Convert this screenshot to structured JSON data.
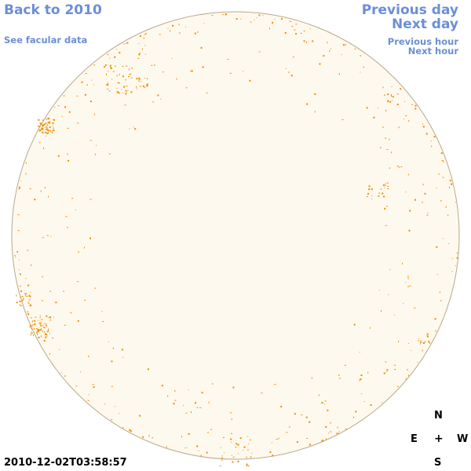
{
  "nav": {
    "back": "Back to 2010",
    "facular": "See facular data",
    "prev_day": "Previous day",
    "next_day": "Next day",
    "prev_hour": "Previous hour",
    "next_hour": "Next hour"
  },
  "compass": {
    "north": "N",
    "east": "E",
    "center": "+",
    "west": "W",
    "south": "S"
  },
  "timestamp": "2010-12-02T03:58:57",
  "colors": {
    "link": "#6b8fd6",
    "disk_fill": "#fef9ee",
    "disk_border": "#b9a98a",
    "facula": "#f08a00"
  }
}
